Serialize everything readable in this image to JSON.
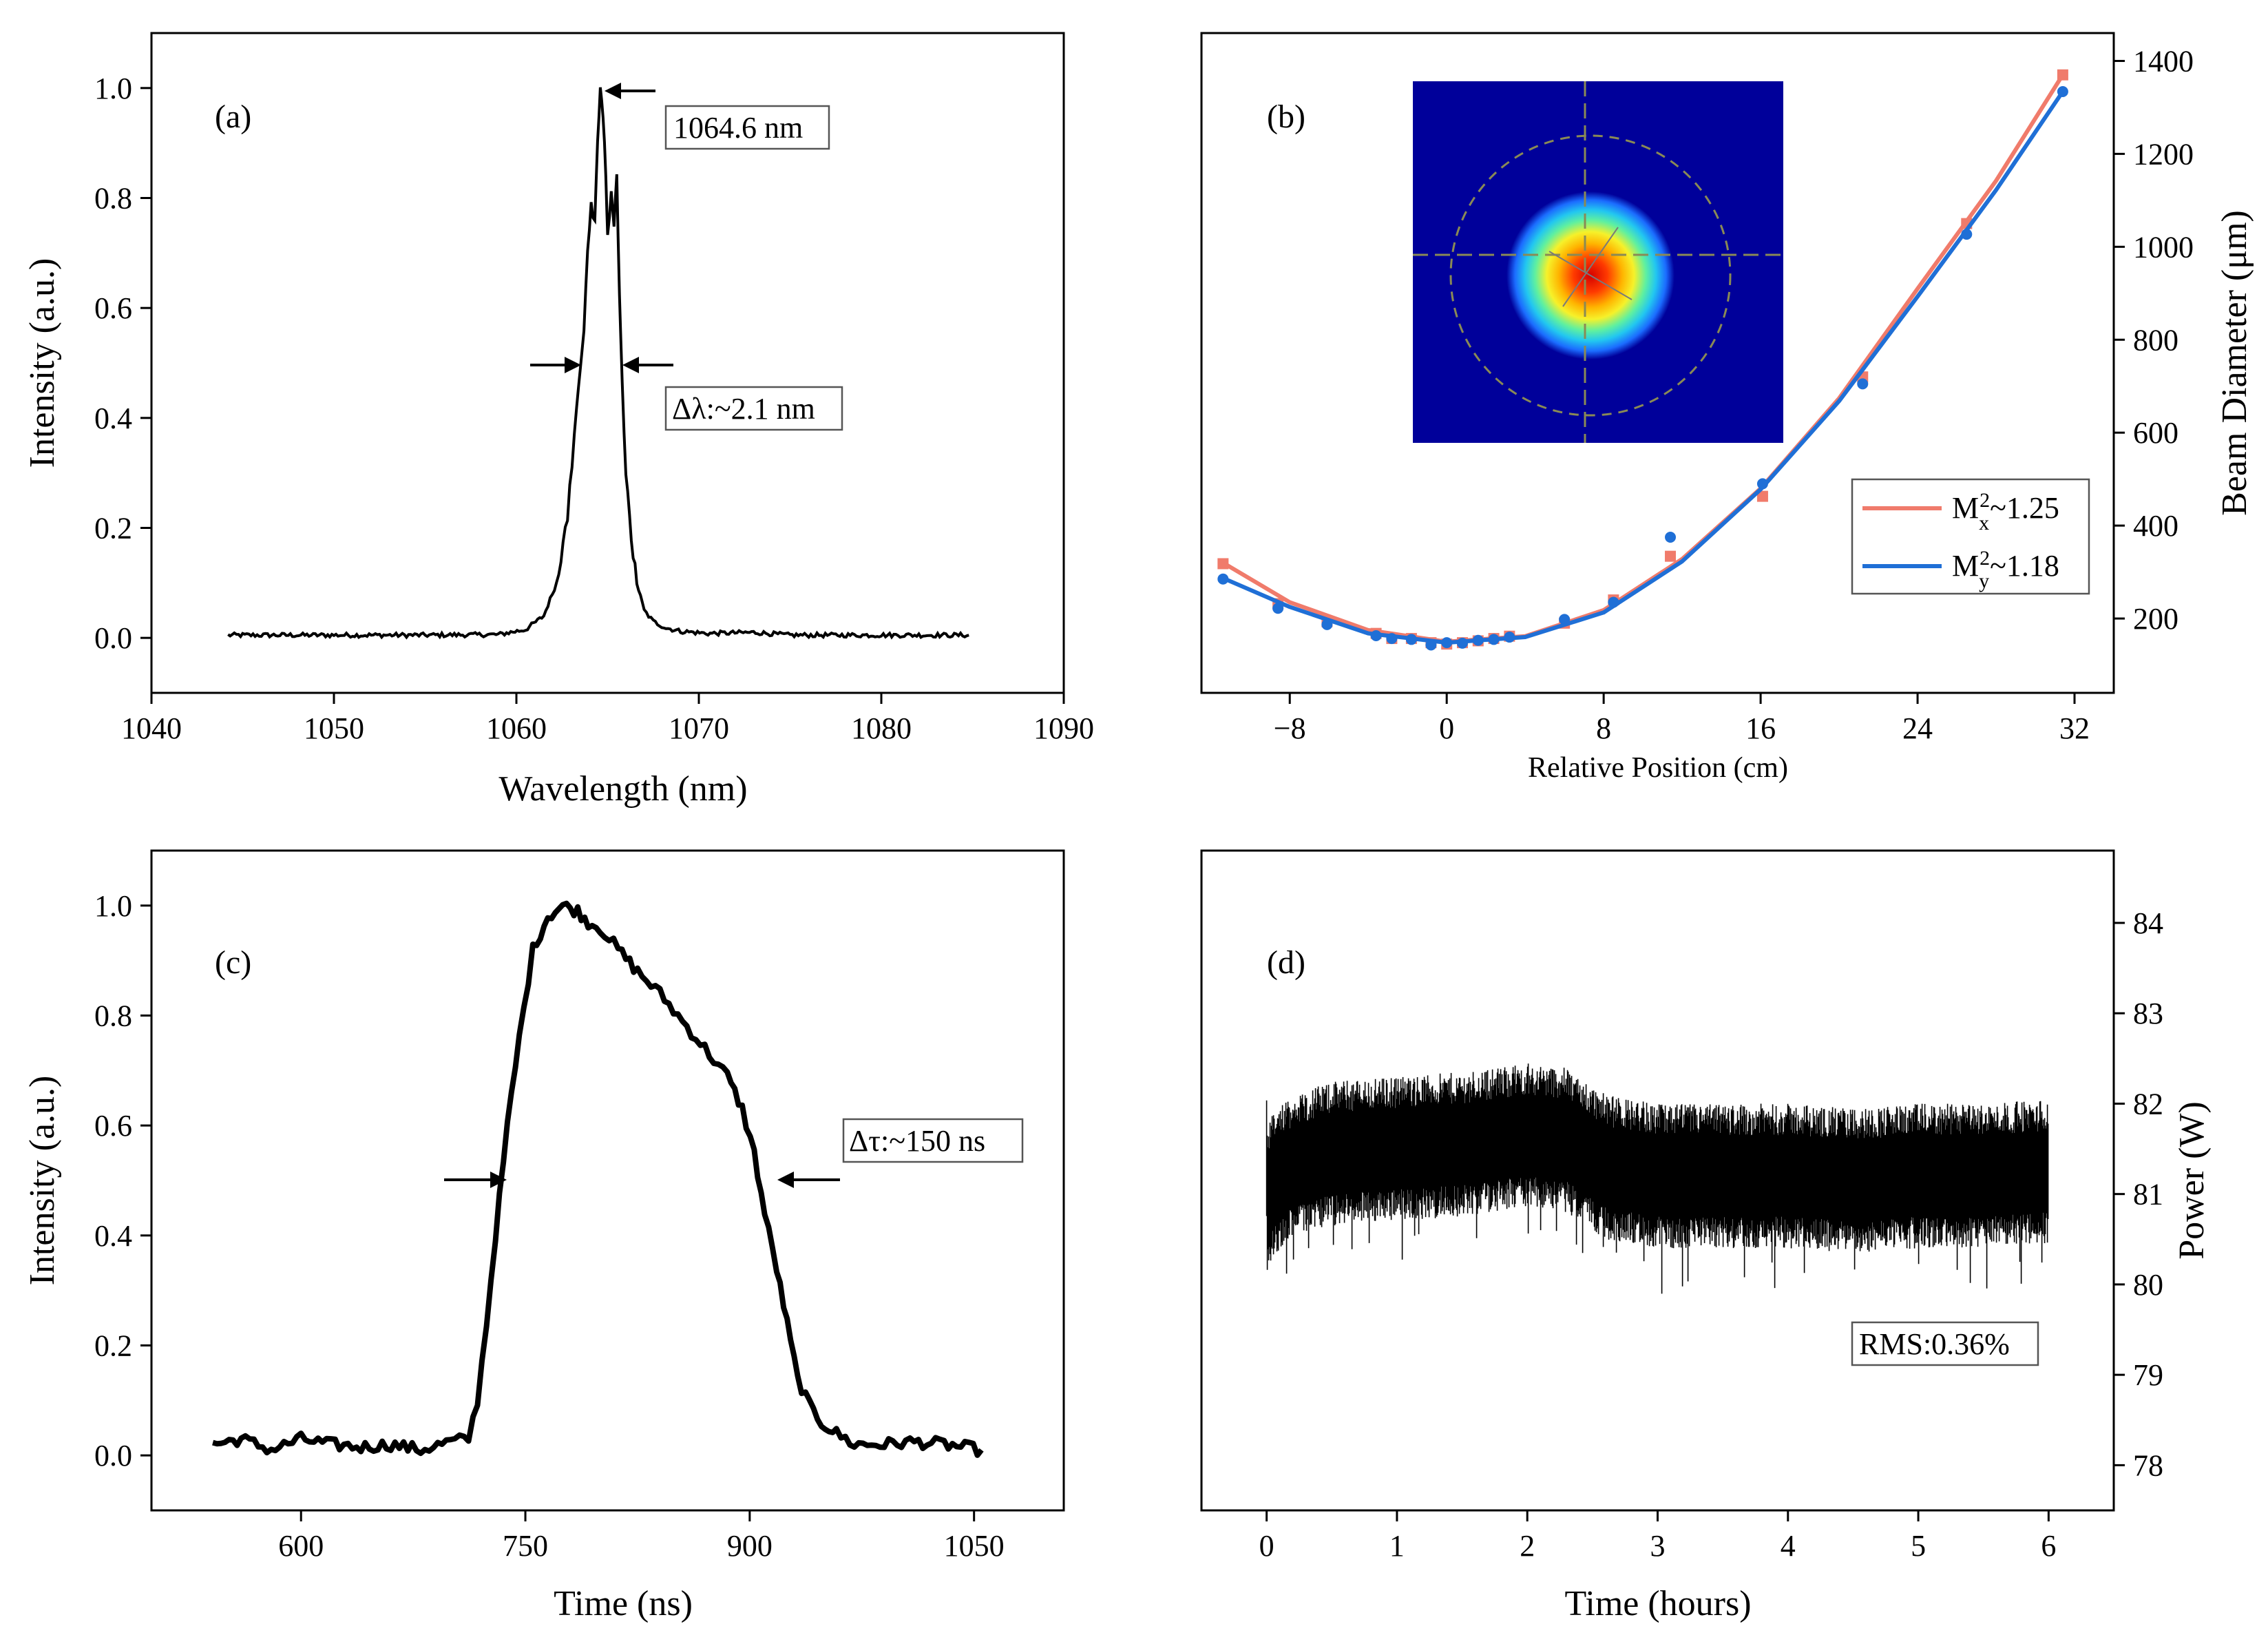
{
  "chart_data": [
    {
      "id": "a",
      "type": "line",
      "panel_label": "(a)",
      "xlabel": "Wavelength (nm)",
      "ylabel": "Intensity (a.u.)",
      "xlim": [
        1040,
        1090
      ],
      "ylim": [
        -0.1,
        1.1
      ],
      "xticks": [
        1040,
        1050,
        1060,
        1070,
        1080,
        1090
      ],
      "yticks": [
        0.0,
        0.2,
        0.4,
        0.6,
        0.8,
        1.0
      ],
      "xtick_labels": [
        "1040",
        "1050",
        "1060",
        "1070",
        "1080",
        "1090"
      ],
      "ytick_labels": [
        "0.0",
        "0.2",
        "0.4",
        "0.6",
        "0.8",
        "1.0"
      ],
      "series": [
        {
          "name": "spectrum",
          "color": "#000000",
          "x": [
            1044.2,
            1050,
            1055,
            1059,
            1060.5,
            1061.5,
            1062.2,
            1062.8,
            1063.3,
            1063.7,
            1063.9,
            1064.1,
            1064.3,
            1064.45,
            1064.6,
            1064.75,
            1064.9,
            1065.0,
            1065.2,
            1065.35,
            1065.5,
            1065.65,
            1065.8,
            1066.0,
            1066.3,
            1066.6,
            1067.0,
            1067.5,
            1068.2,
            1069.0,
            1070.5,
            1073,
            1075,
            1080,
            1084.8
          ],
          "y": [
            0.005,
            0.005,
            0.005,
            0.006,
            0.015,
            0.04,
            0.1,
            0.22,
            0.42,
            0.56,
            0.7,
            0.79,
            0.76,
            0.9,
            1.0,
            0.94,
            0.85,
            0.72,
            0.82,
            0.74,
            0.84,
            0.62,
            0.46,
            0.3,
            0.18,
            0.1,
            0.05,
            0.03,
            0.018,
            0.012,
            0.008,
            0.01,
            0.005,
            0.005,
            0.005
          ]
        }
      ],
      "annotations": [
        {
          "text": "1064.6 nm"
        },
        {
          "text": "Δλ:~2.1 nm"
        }
      ]
    },
    {
      "id": "b",
      "type": "scatter",
      "panel_label": "(b)",
      "xlabel": "Relative Position (cm)",
      "ylabel": "Beam Diameter (μm)",
      "xlim": [
        -12.5,
        34
      ],
      "ylim": [
        40,
        1460
      ],
      "xticks": [
        -8,
        0,
        8,
        16,
        24,
        32
      ],
      "yticks": [
        200,
        400,
        600,
        800,
        1000,
        1200,
        1400
      ],
      "xtick_labels": [
        "−8",
        "0",
        "8",
        "16",
        "24",
        "32"
      ],
      "ytick_labels": [
        "200",
        "400",
        "600",
        "800",
        "1000",
        "1200",
        "1400"
      ],
      "series": [
        {
          "name": "Mx²~1.25",
          "color": "#f07b6b",
          "x": [
            -11.4,
            -8.6,
            -6.1,
            -3.6,
            -2.8,
            -1.8,
            -0.8,
            0,
            0.8,
            1.6,
            2.4,
            3.2,
            6,
            8.5,
            11.4,
            16.1,
            21.2,
            26.5,
            31.4
          ],
          "y": [
            318,
            232,
            193,
            168,
            157,
            157,
            148,
            145,
            148,
            152,
            157,
            162,
            190,
            240,
            334,
            463,
            720,
            1050,
            1370
          ],
          "fit": [
            [
              -11.4,
              320
            ],
            [
              -8,
              235
            ],
            [
              -4,
              175
            ],
            [
              0,
              150
            ],
            [
              4,
              162
            ],
            [
              8,
              218
            ],
            [
              12,
              328
            ],
            [
              16,
              480
            ],
            [
              20,
              674
            ],
            [
              24,
              910
            ],
            [
              28,
              1142
            ],
            [
              31.4,
              1370
            ]
          ]
        },
        {
          "name": "My²~1.18",
          "color": "#1f6fd6",
          "x": [
            -11.4,
            -8.6,
            -6.1,
            -3.6,
            -2.8,
            -1.8,
            -0.8,
            0,
            0.8,
            1.6,
            2.4,
            3.2,
            6,
            8.5,
            11.4,
            16.1,
            21.2,
            26.5,
            31.4
          ],
          "y": [
            285,
            222,
            187,
            163,
            157,
            155,
            143,
            148,
            147,
            153,
            155,
            160,
            198,
            235,
            375,
            490,
            705,
            1027,
            1334
          ],
          "fit": [
            [
              -11.4,
              287
            ],
            [
              -8,
              225
            ],
            [
              -4,
              168
            ],
            [
              0,
              148
            ],
            [
              4,
              160
            ],
            [
              8,
              213
            ],
            [
              12,
              323
            ],
            [
              16,
              478
            ],
            [
              20,
              668
            ],
            [
              24,
              893
            ],
            [
              28,
              1122
            ],
            [
              31.4,
              1334
            ]
          ]
        }
      ],
      "inset": "beam-profile"
    },
    {
      "id": "c",
      "type": "line",
      "panel_label": "(c)",
      "xlabel": "Time (ns)",
      "ylabel": "Intensity (a.u.)",
      "xlim": [
        500,
        1110
      ],
      "ylim": [
        -0.1,
        1.1
      ],
      "xticks": [
        600,
        750,
        900,
        1050
      ],
      "yticks": [
        0.0,
        0.2,
        0.4,
        0.6,
        0.8,
        1.0
      ],
      "xtick_labels": [
        "600",
        "750",
        "900",
        "1050"
      ],
      "ytick_labels": [
        "0.0",
        "0.2",
        "0.4",
        "0.6",
        "0.8",
        "1.0"
      ],
      "series": [
        {
          "name": "pulse",
          "color": "#000000",
          "x": [
            541,
            560,
            580,
            600,
            620,
            640,
            660,
            680,
            700,
            712,
            718,
            724,
            730,
            738,
            746,
            755,
            765,
            775,
            785,
            792,
            800,
            812,
            825,
            840,
            855,
            870,
            885,
            895,
            903,
            910,
            918,
            925,
            932,
            940,
            948,
            958,
            970,
            990,
            1010,
            1030,
            1055
          ],
          "y": [
            0.02,
            0.03,
            0.01,
            0.03,
            0.02,
            0.015,
            0.02,
            0.01,
            0.025,
            0.03,
            0.1,
            0.24,
            0.4,
            0.6,
            0.76,
            0.92,
            0.98,
            1.0,
            0.99,
            0.97,
            0.96,
            0.92,
            0.88,
            0.84,
            0.79,
            0.74,
            0.69,
            0.63,
            0.55,
            0.44,
            0.34,
            0.24,
            0.14,
            0.09,
            0.06,
            0.04,
            0.02,
            0.02,
            0.025,
            0.02,
            0.01
          ]
        }
      ],
      "annotations": [
        {
          "text": "Δτ:~150 ns"
        }
      ]
    },
    {
      "id": "d",
      "type": "line",
      "panel_label": "(d)",
      "xlabel": "Time (hours)",
      "ylabel": "Power (W)",
      "xlim": [
        -0.5,
        6.5
      ],
      "ylim": [
        77.5,
        84.8
      ],
      "xticks": [
        0,
        1,
        2,
        3,
        4,
        5,
        6
      ],
      "yticks": [
        78,
        79,
        80,
        81,
        82,
        83,
        84
      ],
      "xtick_labels": [
        "0",
        "1",
        "2",
        "3",
        "4",
        "5",
        "6"
      ],
      "ytick_labels": [
        "78",
        "79",
        "80",
        "81",
        "82",
        "83",
        "84"
      ],
      "series": [
        {
          "name": "power-mean",
          "color": "#000000",
          "x": [
            0,
            0.05,
            0.2,
            0.5,
            1.0,
            1.5,
            2.0,
            2.3,
            2.6,
            3.0,
            3.5,
            4.0,
            4.5,
            5.0,
            5.5,
            6.0
          ],
          "y": [
            80.9,
            81.1,
            81.3,
            81.45,
            81.5,
            81.55,
            81.65,
            81.6,
            81.3,
            81.2,
            81.2,
            81.2,
            81.15,
            81.2,
            81.2,
            81.25
          ]
        }
      ],
      "annotations": [
        {
          "text": "RMS:0.36%"
        }
      ]
    }
  ]
}
